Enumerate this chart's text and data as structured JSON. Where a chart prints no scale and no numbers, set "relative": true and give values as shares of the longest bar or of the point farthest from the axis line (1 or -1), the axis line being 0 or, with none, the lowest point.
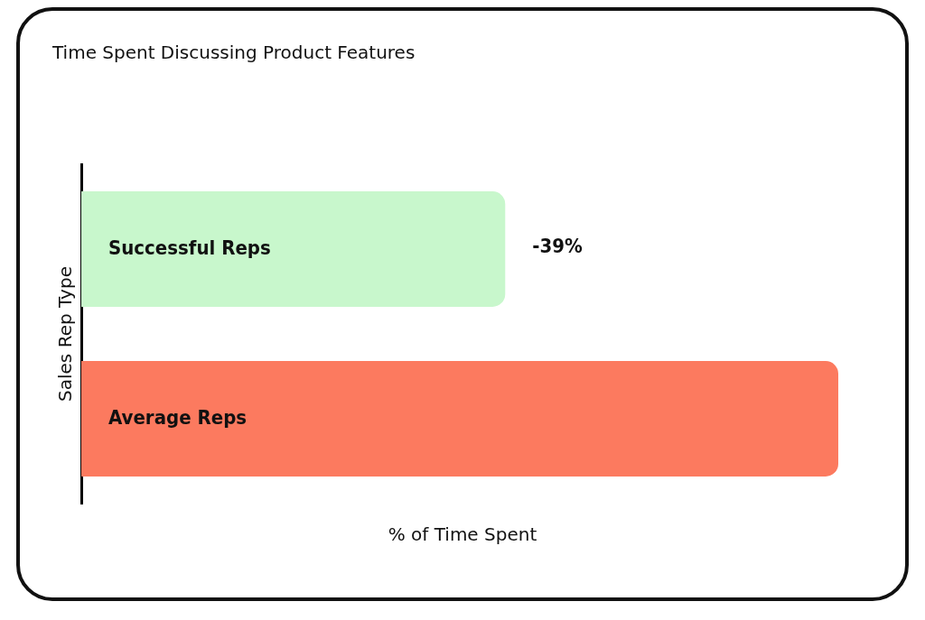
{
  "chart_data": {
    "type": "bar",
    "orientation": "horizontal",
    "relative": true,
    "title": "Time Spent Discussing Product Features",
    "xlabel": "% of Time Spent",
    "ylabel": "Sales Rep Type",
    "categories": [
      "Successful Reps",
      "Average Reps"
    ],
    "values": [
      0.56,
      1
    ],
    "colors": [
      "#c8f7cc",
      "#fc7a5f"
    ],
    "annotations": [
      "-39%"
    ],
    "legend": false
  }
}
